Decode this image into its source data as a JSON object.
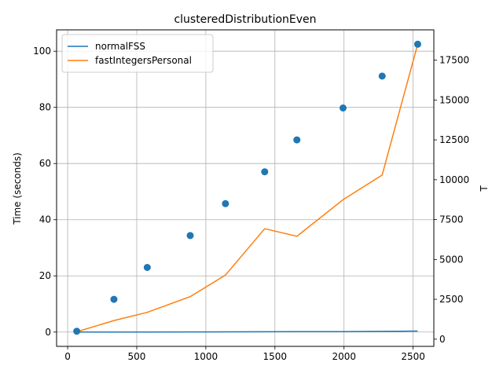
{
  "chart_data": {
    "type": "line",
    "title": "clusteredDistributionEven",
    "xlabel": "",
    "ylabel": "Time (seconds)",
    "y2label": "T",
    "xlim": [
      -80,
      2650
    ],
    "ylim": [
      -5.1,
      107.6
    ],
    "y2lim": [
      -450,
      19400
    ],
    "xticks": [
      0,
      500,
      1000,
      1500,
      2000,
      2500
    ],
    "yticks": [
      0,
      20,
      40,
      60,
      80,
      100
    ],
    "y2ticks": [
      0,
      2500,
      5000,
      7500,
      10000,
      12500,
      15000,
      17500
    ],
    "grid": true,
    "legend_position": "top-left",
    "series": [
      {
        "name": "normalFSS",
        "axis": "left",
        "color": "#1f77b4",
        "x": [
          66,
          335,
          576,
          887,
          1142,
          1426,
          1659,
          1993,
          2276,
          2533
        ],
        "y": [
          0.0,
          0.02,
          0.03,
          0.05,
          0.08,
          0.1,
          0.13,
          0.17,
          0.24,
          0.35
        ]
      },
      {
        "name": "fastIntegersPersonal",
        "axis": "left",
        "color": "#ff7f0e",
        "x": [
          66,
          335,
          576,
          887,
          1142,
          1426,
          1659,
          1993,
          2276,
          2533
        ],
        "y": [
          0.1,
          4.1,
          7.0,
          12.6,
          20.3,
          36.8,
          34.1,
          47.1,
          55.9,
          102.4
        ]
      },
      {
        "name": "T",
        "axis": "right",
        "style": "scatter",
        "color": "#1f77b4",
        "x": [
          66,
          335,
          576,
          887,
          1142,
          1426,
          1659,
          1993,
          2276,
          2533
        ],
        "y": [
          500,
          2500,
          4500,
          6500,
          8500,
          10500,
          12500,
          14500,
          16500,
          18500
        ]
      }
    ]
  }
}
